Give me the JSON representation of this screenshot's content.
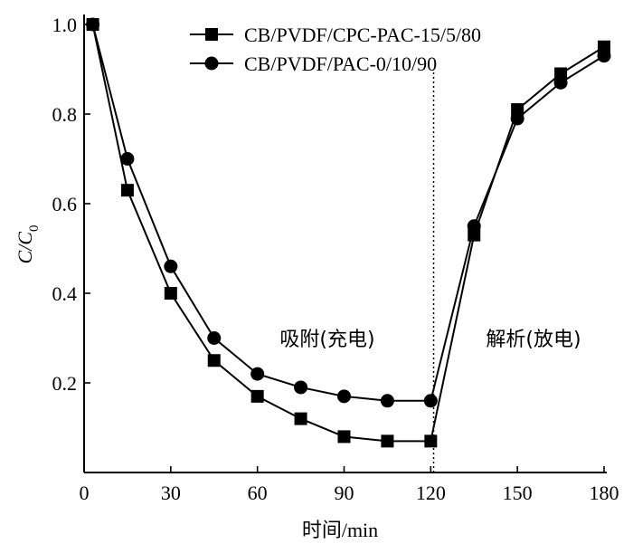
{
  "chart_data": {
    "type": "line",
    "xlabel": "时间/min",
    "ylabel": "C/C0",
    "ylabel_parts": {
      "main": "C/C",
      "subscript": "0"
    },
    "xlim": [
      0,
      180
    ],
    "ylim": [
      0,
      1.0
    ],
    "xticks": [
      0,
      30,
      60,
      90,
      120,
      150,
      180
    ],
    "xtick_labels": [
      "0",
      "30",
      "60",
      "90",
      "120",
      "150",
      "180"
    ],
    "yticks": [
      0.2,
      0.4,
      0.6,
      0.8,
      1.0
    ],
    "ytick_labels": [
      "0.2",
      "0.4",
      "0.6",
      "0.8",
      "1.0"
    ],
    "grid": false,
    "legend_position": "top-right",
    "divider_x": 121,
    "annotations": [
      {
        "text": "吸附(充电)",
        "region": "adsorption"
      },
      {
        "text": "解析(放电)",
        "region": "desorption"
      }
    ],
    "series": [
      {
        "name": "CB/PVDF/CPC-PAC-15/5/80",
        "marker": "square",
        "x": [
          3,
          15,
          30,
          45,
          60,
          75,
          90,
          105,
          120,
          135,
          150,
          165,
          180
        ],
        "y": [
          1.0,
          0.63,
          0.4,
          0.25,
          0.17,
          0.12,
          0.08,
          0.07,
          0.07,
          0.53,
          0.81,
          0.89,
          0.95
        ]
      },
      {
        "name": "CB/PVDF/PAC-0/10/90",
        "marker": "circle",
        "x": [
          3,
          15,
          30,
          45,
          60,
          75,
          90,
          105,
          120,
          135,
          150,
          165,
          180
        ],
        "y": [
          1.0,
          0.7,
          0.46,
          0.3,
          0.22,
          0.19,
          0.17,
          0.16,
          0.16,
          0.55,
          0.79,
          0.87,
          0.93
        ]
      }
    ]
  }
}
